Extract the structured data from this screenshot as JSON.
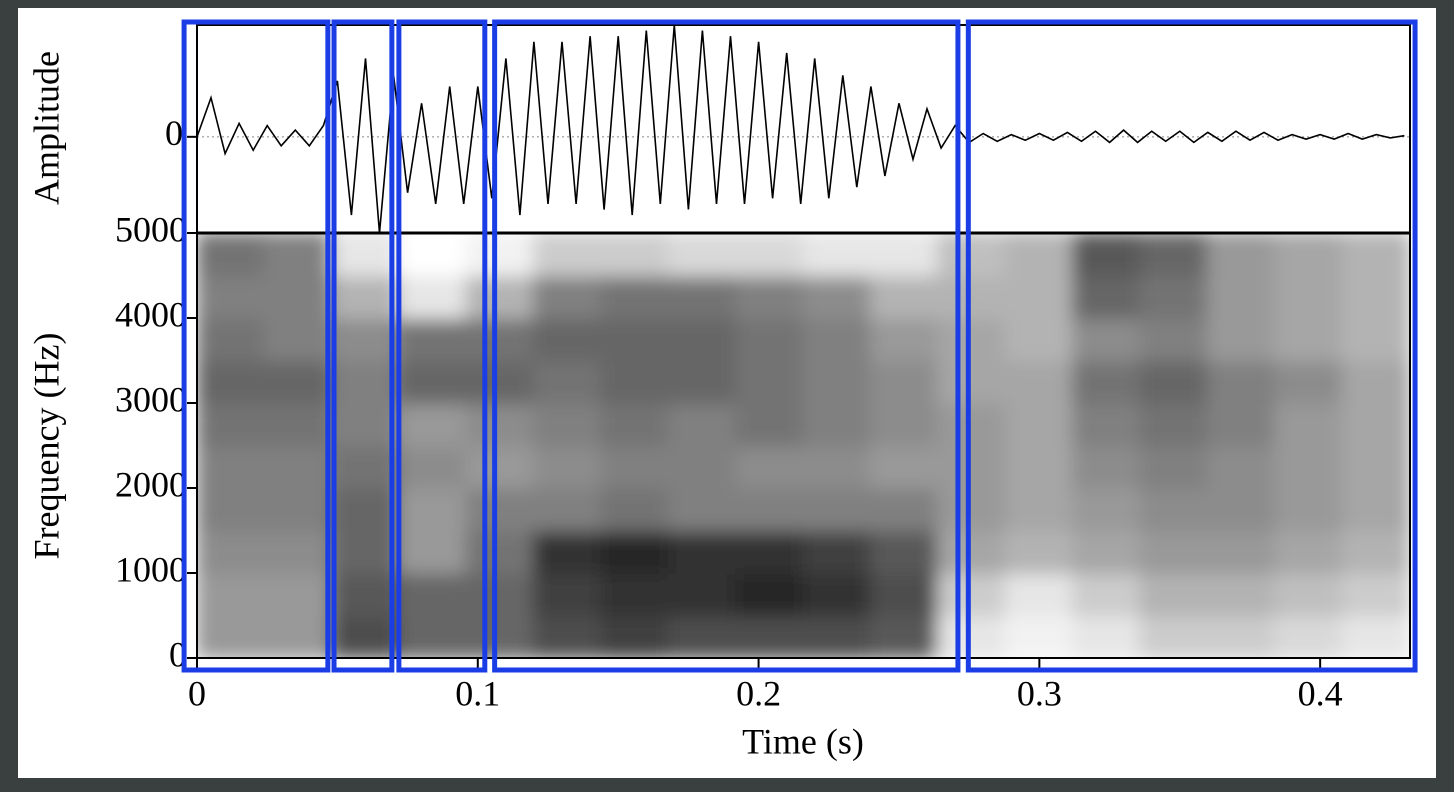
{
  "chart_data": {
    "type": "spectrogram",
    "xlabel": "Time (s)",
    "xlim": [
      0,
      0.432
    ],
    "xticks": [
      0,
      0.1,
      0.2,
      0.3,
      0.4
    ],
    "segments": [
      [
        -0.0046,
        0.0466
      ],
      [
        0.0488,
        0.0694
      ],
      [
        0.0719,
        0.1025
      ],
      [
        0.106,
        0.271
      ],
      [
        0.2747,
        0.4338
      ]
    ],
    "segment_color": "#1a3de6",
    "amplitude": {
      "ylabel": "Amplitude",
      "ylim": [
        -0.86,
        1
      ],
      "yticks": [
        0
      ],
      "color": "#000000",
      "x": [
        0,
        0.005,
        0.01,
        0.015,
        0.02,
        0.025,
        0.03,
        0.035,
        0.04,
        0.045,
        0.05,
        0.055,
        0.06,
        0.065,
        0.07,
        0.075,
        0.08,
        0.085,
        0.09,
        0.095,
        0.1,
        0.105,
        0.11,
        0.115,
        0.12,
        0.125,
        0.13,
        0.135,
        0.14,
        0.145,
        0.15,
        0.155,
        0.16,
        0.165,
        0.17,
        0.175,
        0.18,
        0.185,
        0.19,
        0.195,
        0.2,
        0.205,
        0.21,
        0.215,
        0.22,
        0.225,
        0.23,
        0.235,
        0.24,
        0.245,
        0.25,
        0.255,
        0.26,
        0.265,
        0.27,
        0.275,
        0.28,
        0.285,
        0.29,
        0.295,
        0.3,
        0.305,
        0.31,
        0.315,
        0.32,
        0.325,
        0.33,
        0.335,
        0.34,
        0.345,
        0.35,
        0.355,
        0.36,
        0.365,
        0.37,
        0.375,
        0.38,
        0.385,
        0.39,
        0.395,
        0.4,
        0.405,
        0.41,
        0.415,
        0.42,
        0.425,
        0.43
      ],
      "values": [
        0,
        0.35,
        -0.15,
        0.12,
        -0.12,
        0.1,
        -0.08,
        0.06,
        -0.08,
        0.1,
        0.5,
        -0.7,
        0.7,
        -0.86,
        0.55,
        -0.5,
        0.3,
        -0.6,
        0.45,
        -0.6,
        0.45,
        -0.55,
        0.7,
        -0.7,
        0.85,
        -0.6,
        0.85,
        -0.6,
        0.9,
        -0.65,
        0.9,
        -0.7,
        0.95,
        -0.6,
        1.0,
        -0.65,
        0.95,
        -0.6,
        0.9,
        -0.6,
        0.85,
        -0.55,
        0.75,
        -0.6,
        0.7,
        -0.55,
        0.55,
        -0.45,
        0.45,
        -0.35,
        0.3,
        -0.2,
        0.25,
        -0.1,
        0.1,
        -0.05,
        0.03,
        -0.04,
        0.02,
        -0.03,
        0.03,
        -0.03,
        0.04,
        -0.04,
        0.05,
        -0.05,
        0.06,
        -0.05,
        0.05,
        -0.04,
        0.05,
        -0.05,
        0.04,
        -0.04,
        0.05,
        -0.03,
        0.04,
        -0.03,
        0.02,
        -0.02,
        0.02,
        -0.02,
        0.03,
        -0.02,
        0.02,
        -0.01,
        0.01
      ]
    },
    "spectrogram": {
      "ylabel": "Frequency (Hz)",
      "ylim": [
        0,
        5000
      ],
      "yticks": [
        0,
        1000,
        2000,
        3000,
        4000,
        5000
      ],
      "x": [
        0.012,
        0.036,
        0.06,
        0.084,
        0.108,
        0.132,
        0.156,
        0.18,
        0.204,
        0.228,
        0.252,
        0.276,
        0.3,
        0.324,
        0.348,
        0.372,
        0.396,
        0.42
      ],
      "y": [
        250,
        750,
        1250,
        1750,
        2250,
        2750,
        3250,
        3750,
        4250,
        4750
      ],
      "values": [
        [
          0.4,
          0.4,
          0.45,
          0.5,
          0.5,
          0.55,
          0.6,
          0.55,
          0.5,
          0.55
        ],
        [
          0.4,
          0.4,
          0.45,
          0.5,
          0.5,
          0.55,
          0.6,
          0.5,
          0.5,
          0.5
        ],
        [
          0.7,
          0.65,
          0.6,
          0.6,
          0.55,
          0.5,
          0.5,
          0.45,
          0.3,
          0.1
        ],
        [
          0.6,
          0.6,
          0.4,
          0.4,
          0.45,
          0.4,
          0.6,
          0.55,
          0.1,
          0.0
        ],
        [
          0.6,
          0.6,
          0.55,
          0.5,
          0.4,
          0.45,
          0.6,
          0.55,
          0.3,
          0.05
        ],
        [
          0.7,
          0.75,
          0.8,
          0.5,
          0.45,
          0.5,
          0.55,
          0.6,
          0.5,
          0.2
        ],
        [
          0.75,
          0.8,
          0.85,
          0.55,
          0.5,
          0.55,
          0.6,
          0.6,
          0.55,
          0.2
        ],
        [
          0.7,
          0.8,
          0.8,
          0.5,
          0.5,
          0.5,
          0.6,
          0.6,
          0.55,
          0.15
        ],
        [
          0.7,
          0.85,
          0.8,
          0.5,
          0.45,
          0.55,
          0.55,
          0.55,
          0.5,
          0.15
        ],
        [
          0.7,
          0.8,
          0.75,
          0.5,
          0.45,
          0.5,
          0.5,
          0.5,
          0.45,
          0.1
        ],
        [
          0.65,
          0.7,
          0.65,
          0.5,
          0.4,
          0.45,
          0.45,
          0.4,
          0.3,
          0.1
        ],
        [
          0.1,
          0.2,
          0.35,
          0.4,
          0.4,
          0.4,
          0.35,
          0.35,
          0.3,
          0.25
        ],
        [
          0.05,
          0.1,
          0.3,
          0.35,
          0.35,
          0.35,
          0.35,
          0.3,
          0.3,
          0.3
        ],
        [
          0.1,
          0.2,
          0.35,
          0.4,
          0.45,
          0.5,
          0.55,
          0.45,
          0.6,
          0.65
        ],
        [
          0.2,
          0.3,
          0.4,
          0.45,
          0.5,
          0.55,
          0.6,
          0.5,
          0.55,
          0.6
        ],
        [
          0.2,
          0.3,
          0.4,
          0.45,
          0.45,
          0.5,
          0.5,
          0.4,
          0.4,
          0.4
        ],
        [
          0.15,
          0.25,
          0.35,
          0.4,
          0.4,
          0.4,
          0.45,
          0.35,
          0.35,
          0.35
        ],
        [
          0.1,
          0.2,
          0.3,
          0.35,
          0.35,
          0.35,
          0.35,
          0.3,
          0.3,
          0.3
        ]
      ]
    }
  }
}
